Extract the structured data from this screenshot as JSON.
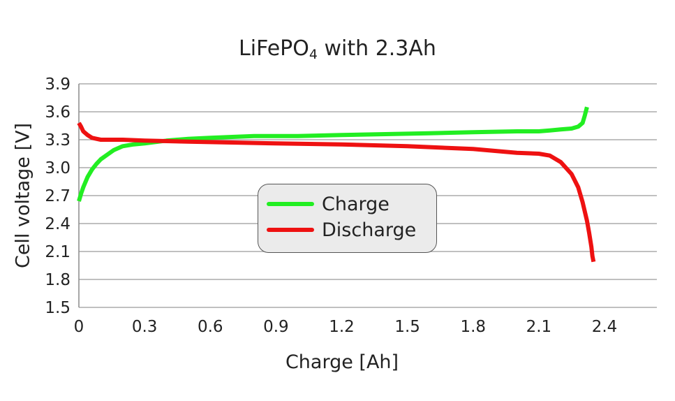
{
  "title": {
    "main": "LiFePO",
    "sub": "4",
    "rest": " with 2.3Ah"
  },
  "chart_data": {
    "type": "line",
    "title": "LiFePO4 with 2.3Ah",
    "xlabel": "Charge [Ah]",
    "ylabel": "Cell voltage [V]",
    "xlim": [
      0,
      2.6
    ],
    "ylim": [
      1.5,
      3.9
    ],
    "xticks": [
      "0",
      "0.3",
      "0.6",
      "0.9",
      "1.2",
      "1.5",
      "1.8",
      "2.1",
      "2.4"
    ],
    "xtick_values": [
      0,
      0.3,
      0.6,
      0.9,
      1.2,
      1.5,
      1.8,
      2.1,
      2.4
    ],
    "yticks": [
      "1.5",
      "1.8",
      "2.1",
      "2.4",
      "2.7",
      "3.0",
      "3.3",
      "3.6",
      "3.9"
    ],
    "ytick_values": [
      1.5,
      1.8,
      2.1,
      2.4,
      2.7,
      3.0,
      3.3,
      3.6,
      3.9
    ],
    "grid": "horizontal",
    "legend_position": "center",
    "series": [
      {
        "name": "Charge",
        "color": "#22ee22",
        "x": [
          0,
          0.01,
          0.02,
          0.04,
          0.06,
          0.08,
          0.1,
          0.13,
          0.16,
          0.2,
          0.25,
          0.3,
          0.4,
          0.5,
          0.6,
          0.7,
          0.8,
          0.9,
          1.0,
          1.2,
          1.4,
          1.6,
          1.8,
          2.0,
          2.1,
          2.15,
          2.2,
          2.25,
          2.28,
          2.3,
          2.31,
          2.32
        ],
        "y": [
          2.64,
          2.72,
          2.79,
          2.9,
          2.98,
          3.04,
          3.09,
          3.14,
          3.19,
          3.23,
          3.25,
          3.26,
          3.29,
          3.31,
          3.32,
          3.33,
          3.34,
          3.34,
          3.34,
          3.35,
          3.36,
          3.37,
          3.38,
          3.39,
          3.39,
          3.4,
          3.41,
          3.42,
          3.44,
          3.48,
          3.56,
          3.65
        ]
      },
      {
        "name": "Discharge",
        "color": "#ee1111",
        "x": [
          0,
          0.01,
          0.02,
          0.04,
          0.06,
          0.08,
          0.1,
          0.15,
          0.2,
          0.3,
          0.5,
          0.7,
          0.9,
          1.2,
          1.5,
          1.8,
          2.0,
          2.1,
          2.15,
          2.2,
          2.25,
          2.28,
          2.3,
          2.32,
          2.33,
          2.34,
          2.345,
          2.35
        ],
        "y": [
          3.48,
          3.44,
          3.39,
          3.35,
          3.32,
          3.31,
          3.3,
          3.3,
          3.3,
          3.29,
          3.28,
          3.27,
          3.26,
          3.25,
          3.23,
          3.2,
          3.16,
          3.15,
          3.13,
          3.06,
          2.93,
          2.79,
          2.63,
          2.43,
          2.3,
          2.15,
          2.05,
          1.99
        ]
      }
    ]
  }
}
